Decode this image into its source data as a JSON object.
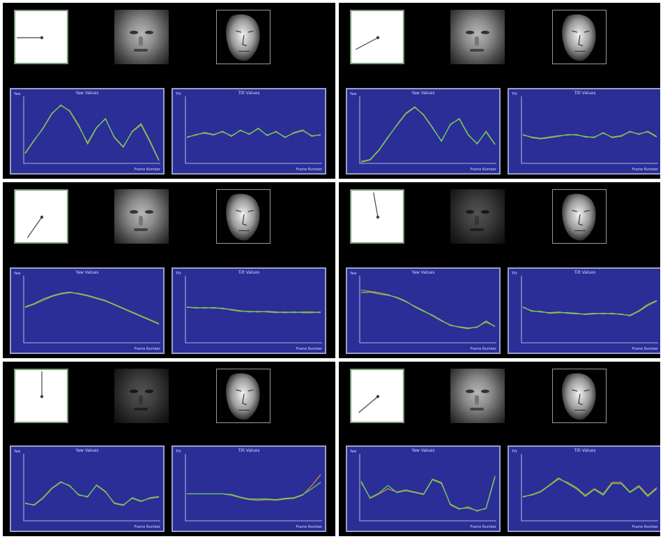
{
  "panels": [
    {
      "id": "p1",
      "face_dark": false,
      "plots": [
        {
          "title": "Yaw Values",
          "ylabel": "Yaw",
          "xlabel": "Frame Number",
          "series": [
            [
              0.15,
              0.35,
              0.55,
              0.78,
              0.9,
              0.82,
              0.6,
              0.3,
              0.55,
              0.7,
              0.4,
              0.25,
              0.5,
              0.62,
              0.35,
              0.05
            ],
            [
              0.16,
              0.36,
              0.54,
              0.77,
              0.91,
              0.81,
              0.58,
              0.32,
              0.56,
              0.69,
              0.41,
              0.26,
              0.49,
              0.6,
              0.33,
              0.04
            ]
          ]
        },
        {
          "title": "Tilt Values",
          "ylabel": "Tilt",
          "xlabel": "Frame Number",
          "series": [
            [
              0.4,
              0.45,
              0.47,
              0.44,
              0.5,
              0.42,
              0.52,
              0.45,
              0.55,
              0.43,
              0.5,
              0.4,
              0.48,
              0.52,
              0.42,
              0.45
            ],
            [
              0.41,
              0.44,
              0.48,
              0.45,
              0.49,
              0.43,
              0.51,
              0.46,
              0.54,
              0.44,
              0.49,
              0.41,
              0.47,
              0.51,
              0.43,
              0.44
            ]
          ]
        }
      ]
    },
    {
      "id": "p2",
      "face_dark": false,
      "plots": [
        {
          "title": "Yaw Values",
          "ylabel": "Yaw",
          "xlabel": "Frame Number",
          "series": [
            [
              0.02,
              0.05,
              0.2,
              0.4,
              0.6,
              0.78,
              0.88,
              0.75,
              0.55,
              0.35,
              0.6,
              0.7,
              0.45,
              0.3,
              0.5,
              0.3
            ],
            [
              0.03,
              0.06,
              0.21,
              0.41,
              0.59,
              0.77,
              0.87,
              0.76,
              0.56,
              0.34,
              0.61,
              0.69,
              0.44,
              0.31,
              0.49,
              0.29
            ]
          ]
        },
        {
          "title": "Tilt Values",
          "ylabel": "Tilt",
          "xlabel": "Frame Number",
          "series": [
            [
              0.45,
              0.4,
              0.38,
              0.4,
              0.42,
              0.45,
              0.44,
              0.42,
              0.4,
              0.48,
              0.4,
              0.42,
              0.5,
              0.45,
              0.5,
              0.42
            ],
            [
              0.44,
              0.41,
              0.39,
              0.41,
              0.43,
              0.44,
              0.45,
              0.41,
              0.41,
              0.47,
              0.41,
              0.43,
              0.49,
              0.46,
              0.49,
              0.41
            ]
          ]
        }
      ]
    },
    {
      "id": "p3",
      "face_dark": false,
      "plots": [
        {
          "title": "Yaw Values",
          "ylabel": "Yaw",
          "xlabel": "Frame Number",
          "series": [
            [
              0.55,
              0.6,
              0.66,
              0.72,
              0.76,
              0.78,
              0.77,
              0.74,
              0.7,
              0.66,
              0.6,
              0.54,
              0.48,
              0.42,
              0.36,
              0.3
            ],
            [
              0.56,
              0.61,
              0.68,
              0.73,
              0.77,
              0.79,
              0.76,
              0.73,
              0.69,
              0.65,
              0.59,
              0.53,
              0.47,
              0.41,
              0.35,
              0.29
            ]
          ]
        },
        {
          "title": "Tilt Values",
          "ylabel": "Tilt",
          "xlabel": "Frame Number",
          "series": [
            [
              0.55,
              0.55,
              0.54,
              0.55,
              0.53,
              0.52,
              0.5,
              0.48,
              0.49,
              0.48,
              0.47,
              0.48,
              0.47,
              0.48,
              0.48,
              0.47
            ],
            [
              0.56,
              0.54,
              0.55,
              0.54,
              0.54,
              0.51,
              0.49,
              0.49,
              0.48,
              0.49,
              0.48,
              0.47,
              0.48,
              0.47,
              0.47,
              0.48
            ]
          ]
        }
      ]
    },
    {
      "id": "p4",
      "face_dark": true,
      "plots": [
        {
          "title": "Yaw Values",
          "ylabel": "Yaw",
          "xlabel": "Frame Number",
          "series": [
            [
              0.82,
              0.8,
              0.78,
              0.75,
              0.7,
              0.64,
              0.57,
              0.5,
              0.42,
              0.34,
              0.28,
              0.24,
              0.22,
              0.25,
              0.32,
              0.26
            ],
            [
              0.78,
              0.79,
              0.76,
              0.74,
              0.71,
              0.65,
              0.56,
              0.49,
              0.43,
              0.35,
              0.27,
              0.25,
              0.23,
              0.24,
              0.34,
              0.25
            ]
          ]
        },
        {
          "title": "Tilt Values",
          "ylabel": "Tilt",
          "xlabel": "Frame Number",
          "series": [
            [
              0.55,
              0.5,
              0.48,
              0.47,
              0.48,
              0.46,
              0.45,
              0.45,
              0.46,
              0.45,
              0.46,
              0.44,
              0.43,
              0.5,
              0.6,
              0.66
            ],
            [
              0.56,
              0.49,
              0.49,
              0.46,
              0.47,
              0.47,
              0.46,
              0.44,
              0.45,
              0.46,
              0.45,
              0.45,
              0.42,
              0.49,
              0.58,
              0.65
            ]
          ]
        }
      ]
    },
    {
      "id": "p5",
      "face_dark": true,
      "plots": [
        {
          "title": "Yaw Values",
          "ylabel": "Yaw",
          "xlabel": "Frame Number",
          "series": [
            [
              0.28,
              0.24,
              0.35,
              0.5,
              0.6,
              0.55,
              0.4,
              0.38,
              0.55,
              0.45,
              0.28,
              0.25,
              0.35,
              0.3,
              0.36,
              0.38
            ],
            [
              0.27,
              0.25,
              0.36,
              0.51,
              0.61,
              0.54,
              0.41,
              0.37,
              0.56,
              0.46,
              0.27,
              0.24,
              0.36,
              0.31,
              0.35,
              0.37
            ]
          ]
        },
        {
          "title": "Tilt Values",
          "ylabel": "Tilt",
          "xlabel": "Frame Number",
          "series": [
            [
              0.42,
              0.42,
              0.42,
              0.42,
              0.42,
              0.4,
              0.36,
              0.33,
              0.32,
              0.33,
              0.32,
              0.34,
              0.35,
              0.4,
              0.55,
              0.72
            ],
            [
              0.42,
              0.42,
              0.42,
              0.42,
              0.42,
              0.41,
              0.37,
              0.34,
              0.34,
              0.34,
              0.33,
              0.35,
              0.36,
              0.41,
              0.5,
              0.6
            ]
          ]
        }
      ]
    },
    {
      "id": "p6",
      "face_dark": false,
      "plots": [
        {
          "title": "Yaw Values",
          "ylabel": "Yaw",
          "xlabel": "Frame Number",
          "series": [
            [
              0.62,
              0.35,
              0.42,
              0.5,
              0.45,
              0.48,
              0.45,
              0.42,
              0.65,
              0.6,
              0.25,
              0.18,
              0.22,
              0.15,
              0.2,
              0.7
            ],
            [
              0.6,
              0.36,
              0.43,
              0.55,
              0.44,
              0.47,
              0.44,
              0.41,
              0.64,
              0.58,
              0.26,
              0.19,
              0.2,
              0.16,
              0.19,
              0.68
            ]
          ]
        },
        {
          "title": "Tilt Values",
          "ylabel": "Tilt",
          "xlabel": "Frame Number",
          "series": [
            [
              0.38,
              0.4,
              0.45,
              0.55,
              0.65,
              0.6,
              0.52,
              0.4,
              0.5,
              0.42,
              0.6,
              0.6,
              0.45,
              0.55,
              0.4,
              0.52
            ],
            [
              0.37,
              0.41,
              0.46,
              0.56,
              0.67,
              0.58,
              0.5,
              0.38,
              0.49,
              0.4,
              0.58,
              0.58,
              0.44,
              0.53,
              0.38,
              0.5
            ]
          ]
        }
      ]
    }
  ],
  "colors": {
    "plot_bg": "#2a2e96",
    "series_a": "#d98a3a",
    "series_b": "#5fd06a",
    "axis": "#e0e0f0",
    "pose_line": "#444444",
    "pose_dot": "#1a5a1a"
  },
  "pose_angles_deg": [
    0,
    -28,
    -55,
    80,
    90,
    -40
  ]
}
